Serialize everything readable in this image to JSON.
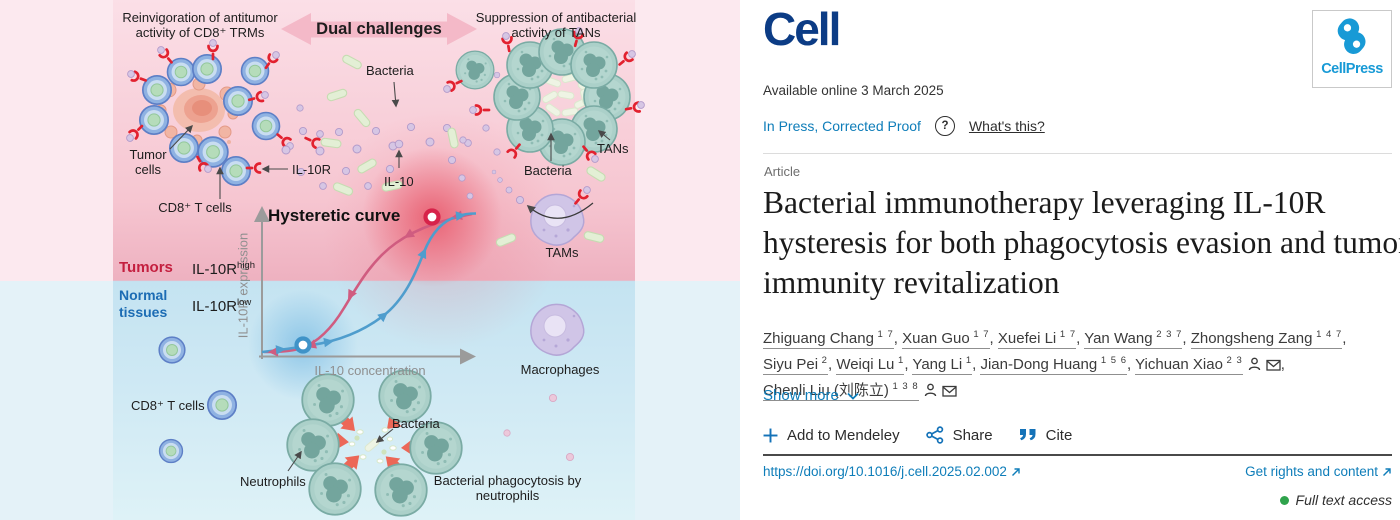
{
  "figure": {
    "reinvigoration": "Reinvigoration of antitumor activity of CD8⁺ TRMs",
    "dual_challenges": "Dual challenges",
    "suppression": "Suppression of antibacterial activity of TANs",
    "bacteria_top": "Bacteria",
    "tumor_cells": "Tumor cells",
    "cd8_t_cells_top": "CD8⁺ T cells",
    "il10r": "IL-10R",
    "il10": "IL-10",
    "bacteria_mid": "Bacteria",
    "tans": "TANs",
    "tams": "TAMs",
    "hysteretic_curve": "Hysteretic curve",
    "y_axis": "IL-10R expression",
    "x_axis": "IL-10 concentration",
    "tumors": "Tumors",
    "il10r_base": "IL-10R",
    "high": "high",
    "low": "low",
    "normal_tissues": "Normal tissues",
    "macrophages": "Macrophages",
    "cd8_t_cells_bottom": "CD8⁺ T cells",
    "neutrophils": "Neutrophils",
    "bacteria_bottom": "Bacteria",
    "phagocytosis": "Bacterial phagocytosis by neutrophils",
    "colors": {
      "pink_curve": "#d05c80",
      "blue_curve": "#4f9dcd",
      "tumors_red": "#c41f3f",
      "normal_blue": "#1c6cb4",
      "receptor_red": "#e2212f"
    }
  },
  "right": {
    "journal_logo": "Cell",
    "cellpress_logo": "CellPress",
    "available": "Available online 3 March 2025",
    "in_press": "In Press, Corrected Proof",
    "question_mark": "?",
    "whats_this": "What's this?",
    "article_type": "Article",
    "title": "Bacterial immunotherapy leveraging IL-10R hysteresis for both phagocytosis evasion and tumor immunity revitalization",
    "authors": [
      {
        "name": "Zhiguang Chang",
        "sup": "1 7"
      },
      {
        "name": "Xuan Guo",
        "sup": "1 7"
      },
      {
        "name": "Xuefei Li",
        "sup": "1 7"
      },
      {
        "name": "Yan Wang",
        "sup": "2 3 7"
      },
      {
        "name": "Zhongsheng Zang",
        "sup": "1 4 7"
      },
      {
        "name": "Siyu Pei",
        "sup": "2"
      },
      {
        "name": "Weiqi Lu",
        "sup": "1"
      },
      {
        "name": "Yang Li",
        "sup": "1"
      },
      {
        "name": "Jian-Dong Huang",
        "sup": "1 5 6"
      },
      {
        "name": "Yichuan Xiao",
        "sup": "2 3",
        "icons": true
      },
      {
        "name": "Chenli Liu (刘陈立)",
        "sup": "1 3 8",
        "icons": true
      }
    ],
    "show_more": "Show more",
    "add_to_mendeley": "Add to Mendeley",
    "share": "Share",
    "cite": "Cite",
    "doi": "https://doi.org/10.1016/j.cell.2025.02.002",
    "rights": "Get rights and content",
    "access": "Full text access",
    "colors": {
      "link_blue": "#0e7db9",
      "logo_blue": "#0c3c85",
      "cellpress_blue": "#189ad6",
      "access_green": "#2fa34c"
    }
  }
}
